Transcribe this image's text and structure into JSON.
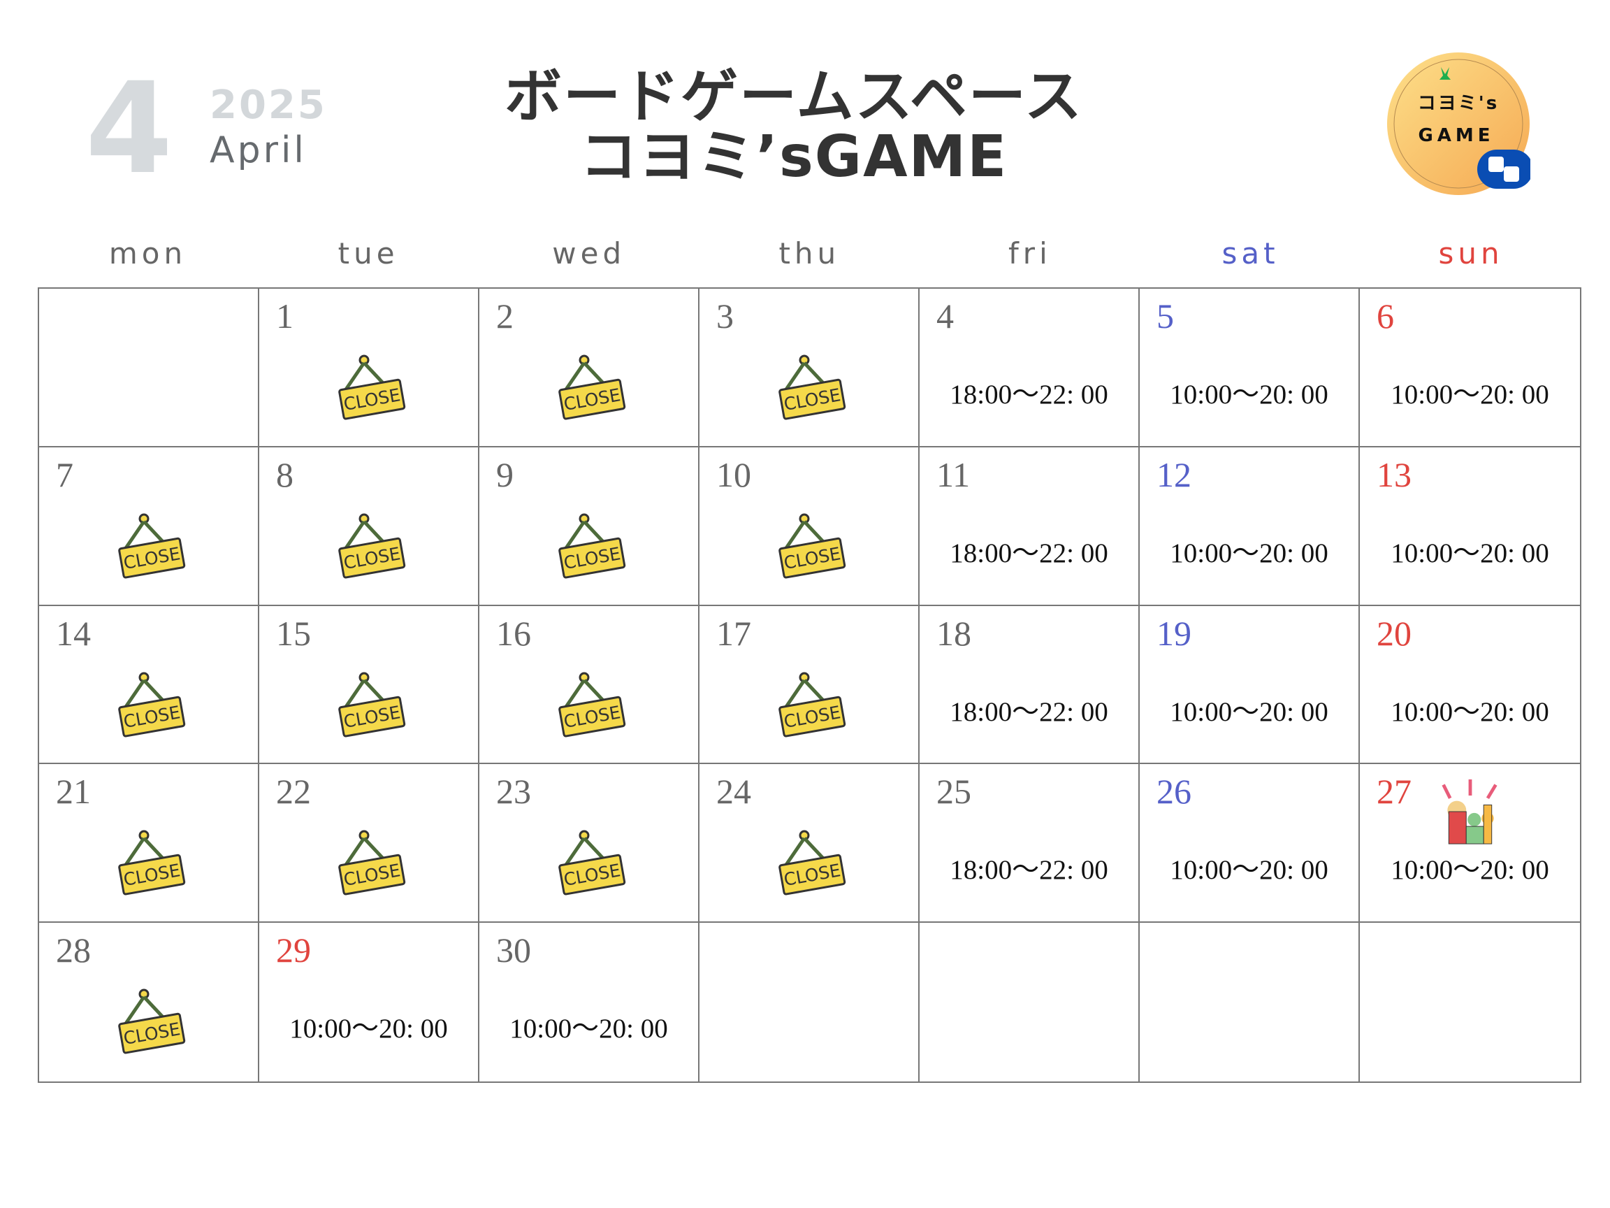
{
  "header": {
    "month_number": "4",
    "year": "2025",
    "month_name": "April",
    "title_line1": "ボードゲームスペース",
    "title_line2": "コヨミ’sGAME",
    "logo_text": "コヨミ's GAME"
  },
  "colors": {
    "weekday": "#666666",
    "saturday": "#5560c8",
    "sunday": "#e0443e",
    "sign": "#f5d94a"
  },
  "weekdays": [
    "mon",
    "tue",
    "wed",
    "thu",
    "fri",
    "sat",
    "sun"
  ],
  "close_label": "CLOSE",
  "weeks": [
    [
      null,
      {
        "day": "1",
        "status": "close"
      },
      {
        "day": "2",
        "status": "close"
      },
      {
        "day": "3",
        "status": "close"
      },
      {
        "day": "4",
        "hours": "18:00〜22: 00"
      },
      {
        "day": "5",
        "type": "sat",
        "hours": "10:00〜20: 00"
      },
      {
        "day": "6",
        "type": "sun",
        "hours": "10:00〜20: 00"
      }
    ],
    [
      {
        "day": "7",
        "status": "close"
      },
      {
        "day": "8",
        "status": "close"
      },
      {
        "day": "9",
        "status": "close"
      },
      {
        "day": "10",
        "status": "close"
      },
      {
        "day": "11",
        "hours": "18:00〜22: 00"
      },
      {
        "day": "12",
        "type": "sat",
        "hours": "10:00〜20: 00"
      },
      {
        "day": "13",
        "type": "sun",
        "hours": "10:00〜20: 00"
      }
    ],
    [
      {
        "day": "14",
        "status": "close"
      },
      {
        "day": "15",
        "status": "close"
      },
      {
        "day": "16",
        "status": "close"
      },
      {
        "day": "17",
        "status": "close"
      },
      {
        "day": "18",
        "hours": "18:00〜22: 00"
      },
      {
        "day": "19",
        "type": "sat",
        "hours": "10:00〜20: 00"
      },
      {
        "day": "20",
        "type": "sun",
        "hours": "10:00〜20: 00"
      }
    ],
    [
      {
        "day": "21",
        "status": "close"
      },
      {
        "day": "22",
        "status": "close"
      },
      {
        "day": "23",
        "status": "close"
      },
      {
        "day": "24",
        "status": "close"
      },
      {
        "day": "25",
        "hours": "18:00〜22: 00"
      },
      {
        "day": "26",
        "type": "sat",
        "hours": "10:00〜20: 00"
      },
      {
        "day": "27",
        "type": "sun",
        "hours": "10:00〜20: 00",
        "icon": "party-icon"
      }
    ],
    [
      {
        "day": "28",
        "status": "close"
      },
      {
        "day": "29",
        "type": "sun",
        "hours": "10:00〜20: 00"
      },
      {
        "day": "30",
        "hours": "10:00〜20: 00"
      },
      null,
      null,
      null,
      null
    ]
  ]
}
